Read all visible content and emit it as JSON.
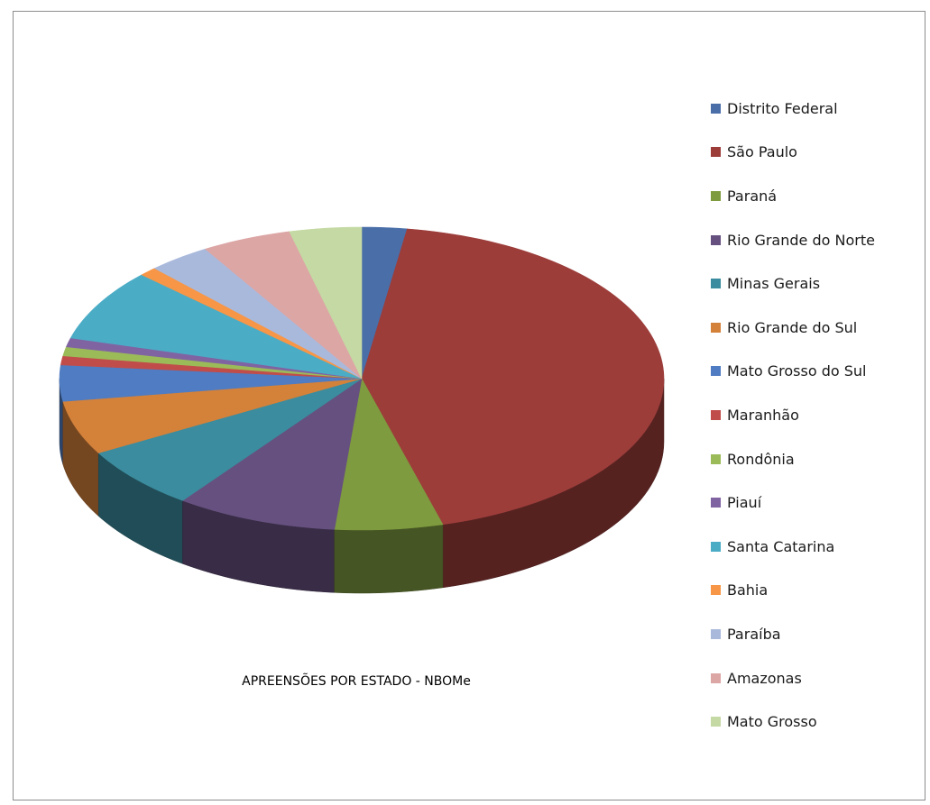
{
  "chart_data": {
    "type": "pie",
    "title": "APREENSÕES POR ESTADO - NBOMe",
    "legend_position": "right",
    "style": "3d-exploded-off",
    "series": [
      {
        "name": "Distrito Federal",
        "value": 2.5,
        "color": "#4a6ea8"
      },
      {
        "name": "São Paulo",
        "value": 45,
        "color": "#9c3d3a"
      },
      {
        "name": "Paraná",
        "value": 6,
        "color": "#7e9b3f"
      },
      {
        "name": "Rio Grande do Norte",
        "value": 9,
        "color": "#66507f"
      },
      {
        "name": "Minas Gerais",
        "value": 7,
        "color": "#3b8c9e"
      },
      {
        "name": "Rio Grande do Sul",
        "value": 6,
        "color": "#d4813a"
      },
      {
        "name": "Mato Grosso do Sul",
        "value": 4,
        "color": "#4f7cc2"
      },
      {
        "name": "Maranhão",
        "value": 1,
        "color": "#c14d4a"
      },
      {
        "name": "Rondônia",
        "value": 1,
        "color": "#9bbb59"
      },
      {
        "name": "Piauí",
        "value": 1,
        "color": "#8064a2"
      },
      {
        "name": "Santa Catarina",
        "value": 8,
        "color": "#4bacc6"
      },
      {
        "name": "Bahia",
        "value": 1,
        "color": "#f79646"
      },
      {
        "name": "Paraíba",
        "value": 3.5,
        "color": "#a9b9dc"
      },
      {
        "name": "Amazonas",
        "value": 5,
        "color": "#dca6a5"
      },
      {
        "name": "Mato Grosso",
        "value": 4,
        "color": "#c4d9a3"
      }
    ]
  }
}
